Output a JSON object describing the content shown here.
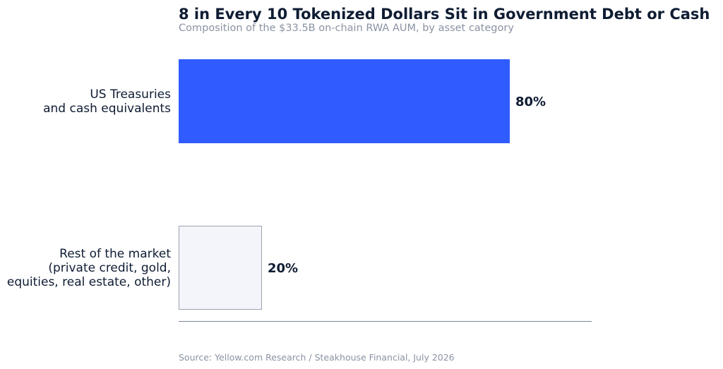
{
  "chart_data": {
    "type": "bar",
    "orientation": "horizontal",
    "title": "8 in Every 10 Tokenized Dollars Sit in Government Debt or Cash",
    "subtitle": "Composition of the $33.5B on-chain RWA AUM, by asset category",
    "categories": [
      [
        "US Treasuries",
        "and cash equivalents"
      ],
      [
        "Rest of the market",
        "(private credit, gold,",
        "equities, real estate, other)"
      ]
    ],
    "values": [
      80,
      20
    ],
    "value_labels": [
      "80%",
      "20%"
    ],
    "value_unit": "%",
    "xlim": [
      0,
      100
    ],
    "grid": false,
    "legend": "none",
    "source": "Source: Yellow.com Research / Steakhouse Financial, July 2026",
    "colors": {
      "bar_fills": [
        "#2f5bff",
        "#f4f5fa"
      ],
      "bar_strokes": [
        "#2f5bff",
        "#9aa3b2"
      ],
      "axis": "#7a8698",
      "title": "#0f1c33",
      "muted": "#8a93a3"
    }
  }
}
